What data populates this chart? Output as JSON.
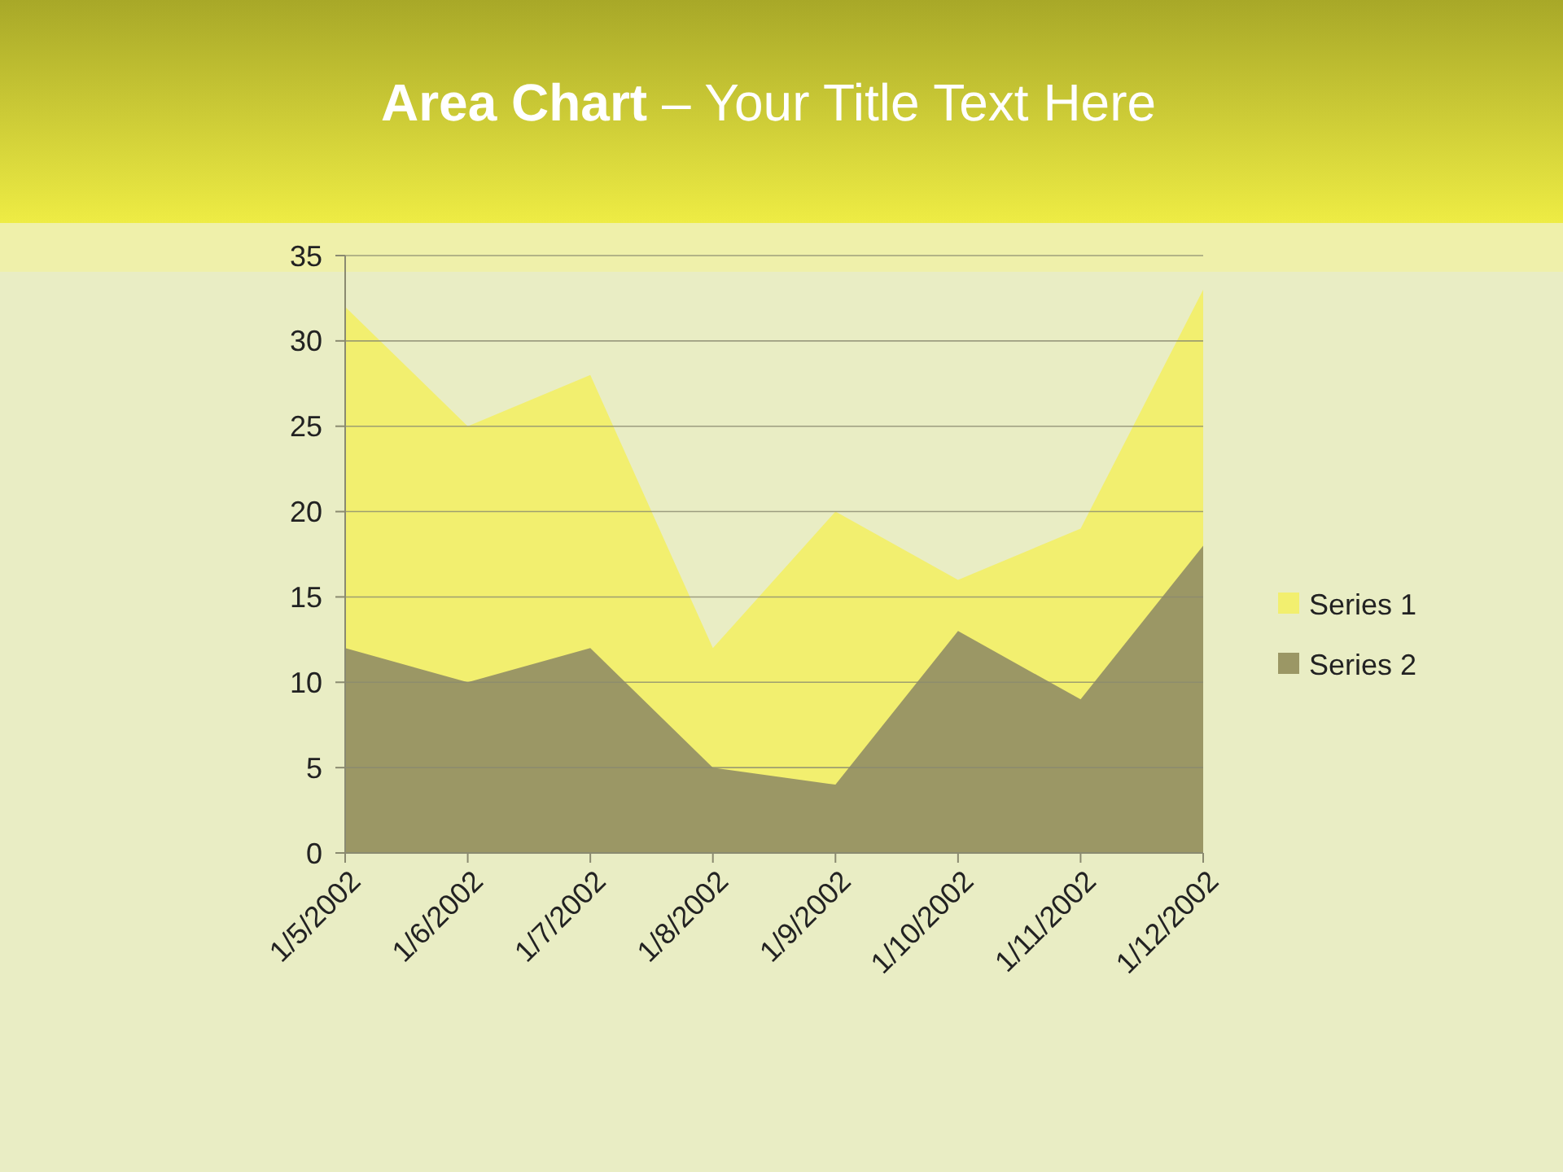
{
  "chart_data": {
    "type": "area",
    "title": "Area Chart – Your Title Text Here",
    "categories": [
      "1/5/2002",
      "1/6/2002",
      "1/7/2002",
      "1/8/2002",
      "1/9/2002",
      "1/10/2002",
      "1/11/2002",
      "1/12/2002"
    ],
    "series": [
      {
        "name": "Series 1",
        "color": "#f2ef6f",
        "values": [
          32,
          25,
          28,
          12,
          20,
          16,
          19,
          33
        ]
      },
      {
        "name": "Series 2",
        "color": "#9b9765",
        "values": [
          12,
          10,
          12,
          5,
          4,
          13,
          9,
          18
        ]
      }
    ],
    "ylim": [
      0,
      35
    ],
    "yticks": [
      0,
      5,
      10,
      15,
      20,
      25,
      30,
      35
    ],
    "grid": "y",
    "legend": "right"
  }
}
